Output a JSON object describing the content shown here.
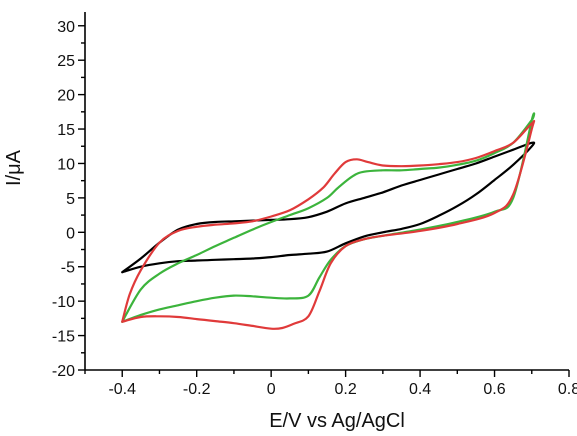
{
  "chart_data": {
    "type": "line",
    "title": "",
    "xlabel": "E/V vs Ag/AgCl",
    "ylabel": "I/μA",
    "xlim": [
      -0.5,
      0.8
    ],
    "ylim": [
      -20,
      32
    ],
    "x_ticks": [
      -0.4,
      -0.2,
      0,
      0.2,
      0.4,
      0.6,
      0.8
    ],
    "x_tick_labels": [
      "-0.4",
      "-0.2",
      "0",
      "0.2",
      "0.4",
      "0.6",
      "0.8"
    ],
    "y_ticks": [
      -20,
      -15,
      -10,
      -5,
      0,
      5,
      10,
      15,
      20,
      25,
      30
    ],
    "y_tick_labels": [
      "-20",
      "-15",
      "-10",
      "-5",
      "0",
      "5",
      "10",
      "15",
      "20",
      "25",
      "30"
    ],
    "grid": false,
    "legend": "none",
    "series": [
      {
        "color": "#000000",
        "x": [
          -0.4,
          -0.35,
          -0.3,
          -0.25,
          -0.2,
          -0.15,
          -0.1,
          -0.05,
          0.0,
          0.05,
          0.1,
          0.15,
          0.2,
          0.25,
          0.3,
          0.35,
          0.4,
          0.45,
          0.5,
          0.55,
          0.6,
          0.65,
          0.7,
          0.7,
          0.65,
          0.6,
          0.55,
          0.5,
          0.45,
          0.4,
          0.35,
          0.3,
          0.25,
          0.2,
          0.15,
          0.1,
          0.05,
          0.0,
          -0.05,
          -0.1,
          -0.15,
          -0.2,
          -0.25,
          -0.3,
          -0.35,
          -0.4
        ],
        "y": [
          -5.8,
          -5.0,
          -4.5,
          -4.2,
          -4.1,
          -4.0,
          -3.9,
          -3.8,
          -3.6,
          -3.3,
          -3.1,
          -2.8,
          -1.6,
          -0.6,
          0.0,
          0.5,
          1.2,
          2.4,
          3.8,
          5.5,
          7.6,
          9.8,
          12.5,
          13.0,
          12.0,
          11.0,
          10.0,
          9.2,
          8.4,
          7.6,
          6.8,
          5.8,
          5.0,
          4.2,
          3.0,
          2.2,
          1.9,
          1.8,
          1.7,
          1.6,
          1.5,
          1.2,
          0.4,
          -1.5,
          -3.8,
          -5.8
        ]
      },
      {
        "color": "#3cb43c",
        "x": [
          -0.4,
          -0.35,
          -0.3,
          -0.25,
          -0.2,
          -0.15,
          -0.1,
          -0.05,
          0.0,
          0.05,
          0.1,
          0.13,
          0.16,
          0.2,
          0.25,
          0.3,
          0.4,
          0.5,
          0.6,
          0.65,
          0.7,
          0.7,
          0.65,
          0.6,
          0.55,
          0.5,
          0.45,
          0.4,
          0.35,
          0.3,
          0.25,
          0.22,
          0.18,
          0.15,
          0.1,
          0.05,
          0.0,
          -0.05,
          -0.1,
          -0.15,
          -0.2,
          -0.25,
          -0.3,
          -0.35,
          -0.4
        ],
        "y": [
          -13.0,
          -12.0,
          -11.2,
          -10.6,
          -10.0,
          -9.5,
          -9.2,
          -9.3,
          -9.5,
          -9.6,
          -9.2,
          -6.5,
          -4.0,
          -2.0,
          -1.0,
          -0.5,
          0.4,
          1.5,
          3.0,
          5.0,
          16.3,
          16.3,
          13.0,
          11.5,
          10.4,
          9.8,
          9.4,
          9.2,
          9.0,
          9.0,
          8.8,
          8.2,
          6.5,
          5.0,
          3.5,
          2.5,
          1.5,
          0.4,
          -0.8,
          -2.0,
          -3.3,
          -4.5,
          -6.0,
          -8.3,
          -13.0
        ]
      },
      {
        "color": "#e03a3a",
        "x": [
          -0.4,
          -0.35,
          -0.3,
          -0.25,
          -0.2,
          -0.15,
          -0.1,
          -0.05,
          0.0,
          0.03,
          0.06,
          0.1,
          0.13,
          0.16,
          0.2,
          0.25,
          0.3,
          0.4,
          0.5,
          0.6,
          0.65,
          0.7,
          0.7,
          0.65,
          0.6,
          0.55,
          0.5,
          0.45,
          0.4,
          0.35,
          0.3,
          0.26,
          0.23,
          0.2,
          0.17,
          0.14,
          0.1,
          0.05,
          0.0,
          -0.05,
          -0.1,
          -0.15,
          -0.2,
          -0.25,
          -0.3,
          -0.35,
          -0.38,
          -0.4
        ],
        "y": [
          -13.0,
          -12.3,
          -12.2,
          -12.3,
          -12.6,
          -12.9,
          -13.2,
          -13.6,
          -14.0,
          -13.9,
          -13.3,
          -12.2,
          -8.5,
          -4.5,
          -2.0,
          -1.0,
          -0.5,
          0.2,
          1.2,
          2.8,
          5.5,
          15.0,
          15.8,
          13.0,
          11.8,
          10.8,
          10.2,
          9.9,
          9.7,
          9.6,
          9.7,
          10.2,
          10.6,
          10.2,
          8.5,
          6.5,
          4.8,
          3.2,
          2.3,
          1.6,
          1.3,
          1.1,
          0.8,
          0.2,
          -1.5,
          -5.5,
          -9.0,
          -13.0
        ]
      }
    ]
  }
}
